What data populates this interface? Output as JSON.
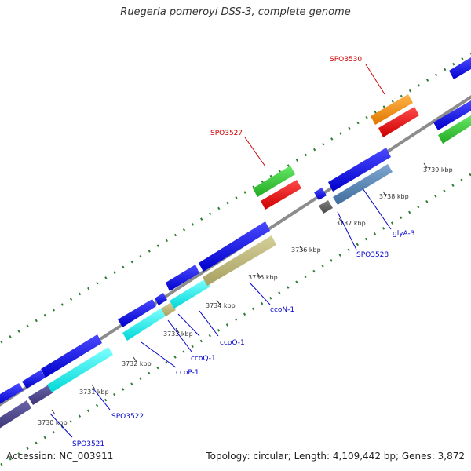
{
  "title": "Ruegeria pomeroyi DSS-3, complete genome",
  "footer": {
    "accession": "Accession: NC_003911",
    "summary": "Topology: circular; Length: 4,109,442 bp; Genes: 3,872"
  },
  "colors": {
    "backbone": "#8c8c8c",
    "dots": "#2e7d32",
    "label_blue": "#0000cc",
    "label_red": "#cc0000"
  },
  "ticks": [
    "3730 kbp",
    "3731 kbp",
    "3732 kbp",
    "3733 kbp",
    "3734 kbp",
    "3735 kbp",
    "3736 kbp",
    "3737 kbp",
    "3738 kbp",
    "3739 kbp"
  ],
  "gene_labels": [
    {
      "text": "SPO3521",
      "color": "blue"
    },
    {
      "text": "SPO3522",
      "color": "blue"
    },
    {
      "text": "ccoP-1",
      "color": "blue"
    },
    {
      "text": "ccoQ-1",
      "color": "blue"
    },
    {
      "text": "ccoO-1",
      "color": "blue"
    },
    {
      "text": "ccoN-1",
      "color": "blue"
    },
    {
      "text": "SPO3528",
      "color": "blue"
    },
    {
      "text": "glyA-3",
      "color": "blue"
    },
    {
      "text": "SPO3527",
      "color": "red"
    },
    {
      "text": "SPO3530",
      "color": "red"
    }
  ]
}
